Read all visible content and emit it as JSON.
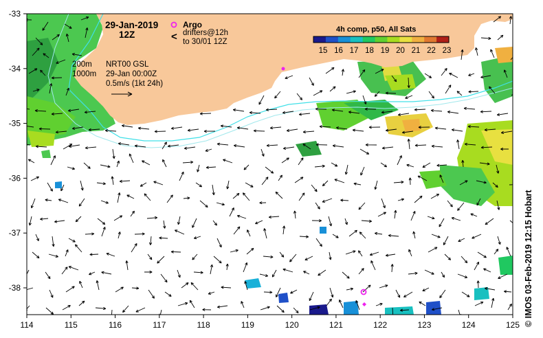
{
  "title": {
    "date": "29-Jan-2019",
    "time": "12Z"
  },
  "legend_argo": {
    "label": "Argo",
    "drifters_line1": "drifters@12h",
    "drifters_line2": "to 30/01 12Z",
    "argo_color": "#ee22ee",
    "drifter_color": "#ee22ee"
  },
  "colorbar": {
    "title": "4h comp, p50, All Sats",
    "tick_labels": [
      "15",
      "16",
      "17",
      "18",
      "19",
      "20",
      "21",
      "22",
      "23"
    ],
    "colors": [
      "#1a1a8c",
      "#1f50c8",
      "#1890d8",
      "#18c0c0",
      "#20c860",
      "#60d030",
      "#a8dc20",
      "#e8e040",
      "#f0b040",
      "#e07830",
      "#b02018"
    ]
  },
  "depth_info": {
    "contour_200": "200m",
    "contour_1000": "1000m",
    "product": "NRT00 GSL",
    "analysis_time": "29-Jan 00:00Z",
    "scale": "0.5m/s (1kt 24h)"
  },
  "axes": {
    "x_ticks": [
      "114",
      "115",
      "116",
      "117",
      "118",
      "119",
      "120",
      "121",
      "122",
      "123",
      "124",
      "125"
    ],
    "y_ticks": [
      "-33",
      "-34",
      "-35",
      "-36",
      "-37",
      "-38"
    ]
  },
  "credit": "©  IMOS 03-Feb-2019 12:15 Hobart",
  "colors": {
    "land": "#f8c89a",
    "isobath_200": "#40e0e8",
    "isobath_1000": "#a0e8ec",
    "frame": "#000000"
  }
}
